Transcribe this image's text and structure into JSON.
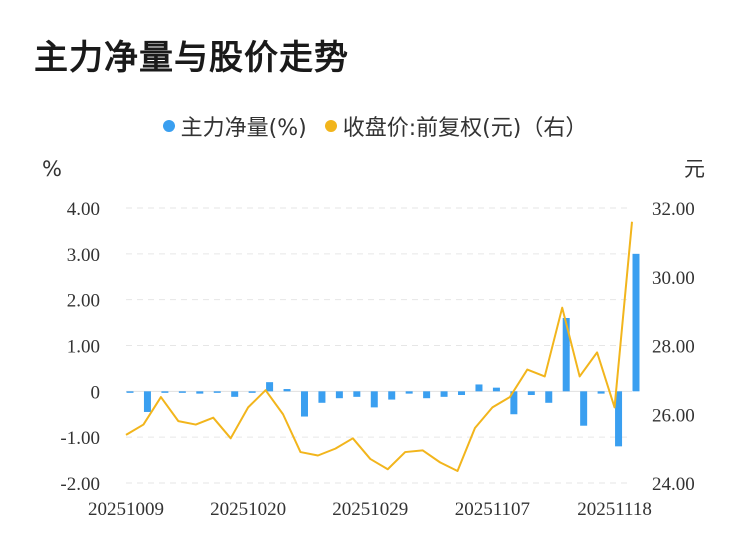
{
  "chart_data": {
    "type": "bar+line",
    "title": "主力净量与股价走势",
    "left_unit": "%",
    "right_unit": "元",
    "legend": [
      {
        "label": "主力净量(%)",
        "color": "#3a9ff0",
        "shape": "dot"
      },
      {
        "label": "收盘价:前复权(元)（右）",
        "color": "#f2b51c",
        "shape": "dot"
      }
    ],
    "left_axis": {
      "ticks": [
        4,
        3,
        2,
        1,
        0,
        -1,
        -2
      ],
      "labels": [
        "4.00",
        "3.00",
        "2.00",
        "1.00",
        "0",
        "-1.00",
        "-2.00"
      ],
      "ylim": [
        -2,
        4
      ]
    },
    "right_axis": {
      "ticks": [
        32,
        30,
        28,
        26,
        24
      ],
      "labels": [
        "32.00",
        "30.00",
        "28.00",
        "26.00",
        "24.00"
      ],
      "ylim": [
        24,
        32
      ]
    },
    "x_tick_labels": [
      {
        "index": 0,
        "label": "20251009"
      },
      {
        "index": 7,
        "label": "20251020"
      },
      {
        "index": 14,
        "label": "20251029"
      },
      {
        "index": 21,
        "label": "20251107"
      },
      {
        "index": 28,
        "label": "20251118"
      }
    ],
    "series": [
      {
        "name": "主力净量(%)",
        "kind": "bar",
        "color": "#3a9ff0",
        "values": [
          -0.02,
          -0.45,
          -0.03,
          -0.02,
          -0.05,
          0.0,
          -0.12,
          -0.02,
          0.2,
          0.05,
          -0.55,
          -0.25,
          -0.15,
          -0.12,
          -0.35,
          -0.18,
          -0.05,
          -0.15,
          -0.12,
          -0.08,
          0.15,
          0.08,
          -0.5,
          -0.08,
          -0.25,
          1.6,
          -0.75,
          -0.05,
          -1.2,
          3.0
        ]
      },
      {
        "name": "收盘价:前复权(元)（右）",
        "kind": "line",
        "color": "#f2b51c",
        "values": [
          25.4,
          25.7,
          26.5,
          25.8,
          25.7,
          25.9,
          25.3,
          26.2,
          26.7,
          26.0,
          24.9,
          24.8,
          25.0,
          25.3,
          24.7,
          24.4,
          24.9,
          24.95,
          24.6,
          24.35,
          25.6,
          26.2,
          26.5,
          27.3,
          27.1,
          29.1,
          27.1,
          27.8,
          26.2,
          31.6
        ]
      }
    ]
  }
}
